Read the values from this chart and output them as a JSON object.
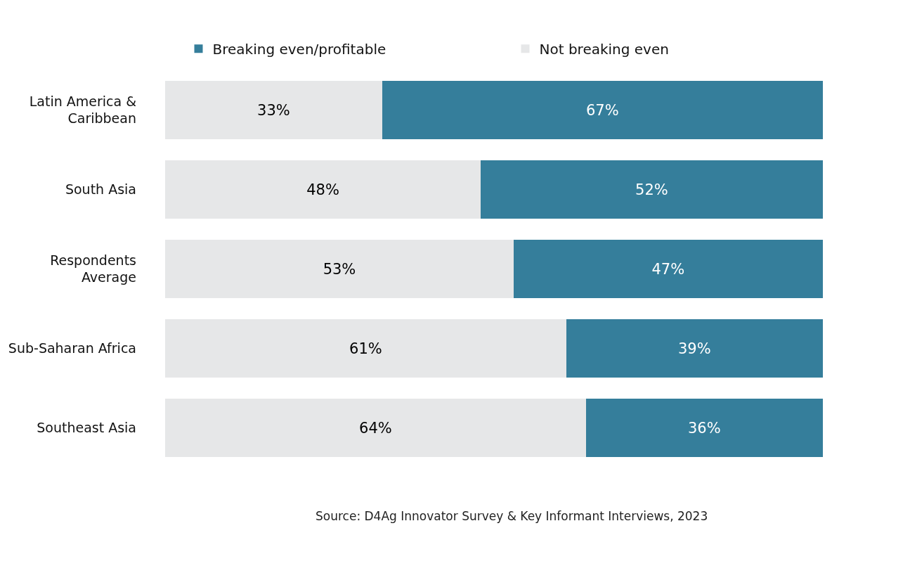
{
  "chart_data": {
    "type": "bar",
    "orientation": "horizontal",
    "stacked": true,
    "legend": "top",
    "categories": [
      "Latin America & Caribbean",
      "South Asia",
      "Respondents Average",
      "Sub-Saharan Africa",
      "Southeast Asia"
    ],
    "series": [
      {
        "name": "Not breaking even",
        "color": "#e6e7e8",
        "values": [
          33,
          48,
          53,
          61,
          64
        ],
        "value_labels": [
          "33%",
          "48%",
          "53%",
          "61%",
          "64%"
        ]
      },
      {
        "name": "Breaking even/profitable",
        "color": "#357e9b",
        "values": [
          67,
          52,
          47,
          39,
          36
        ],
        "value_labels": [
          "67%",
          "52%",
          "47%",
          "39%",
          "36%"
        ]
      }
    ],
    "annotations": [
      "Source: D4Ag Innovator Survey & Key Informant Interviews, 2023"
    ]
  }
}
